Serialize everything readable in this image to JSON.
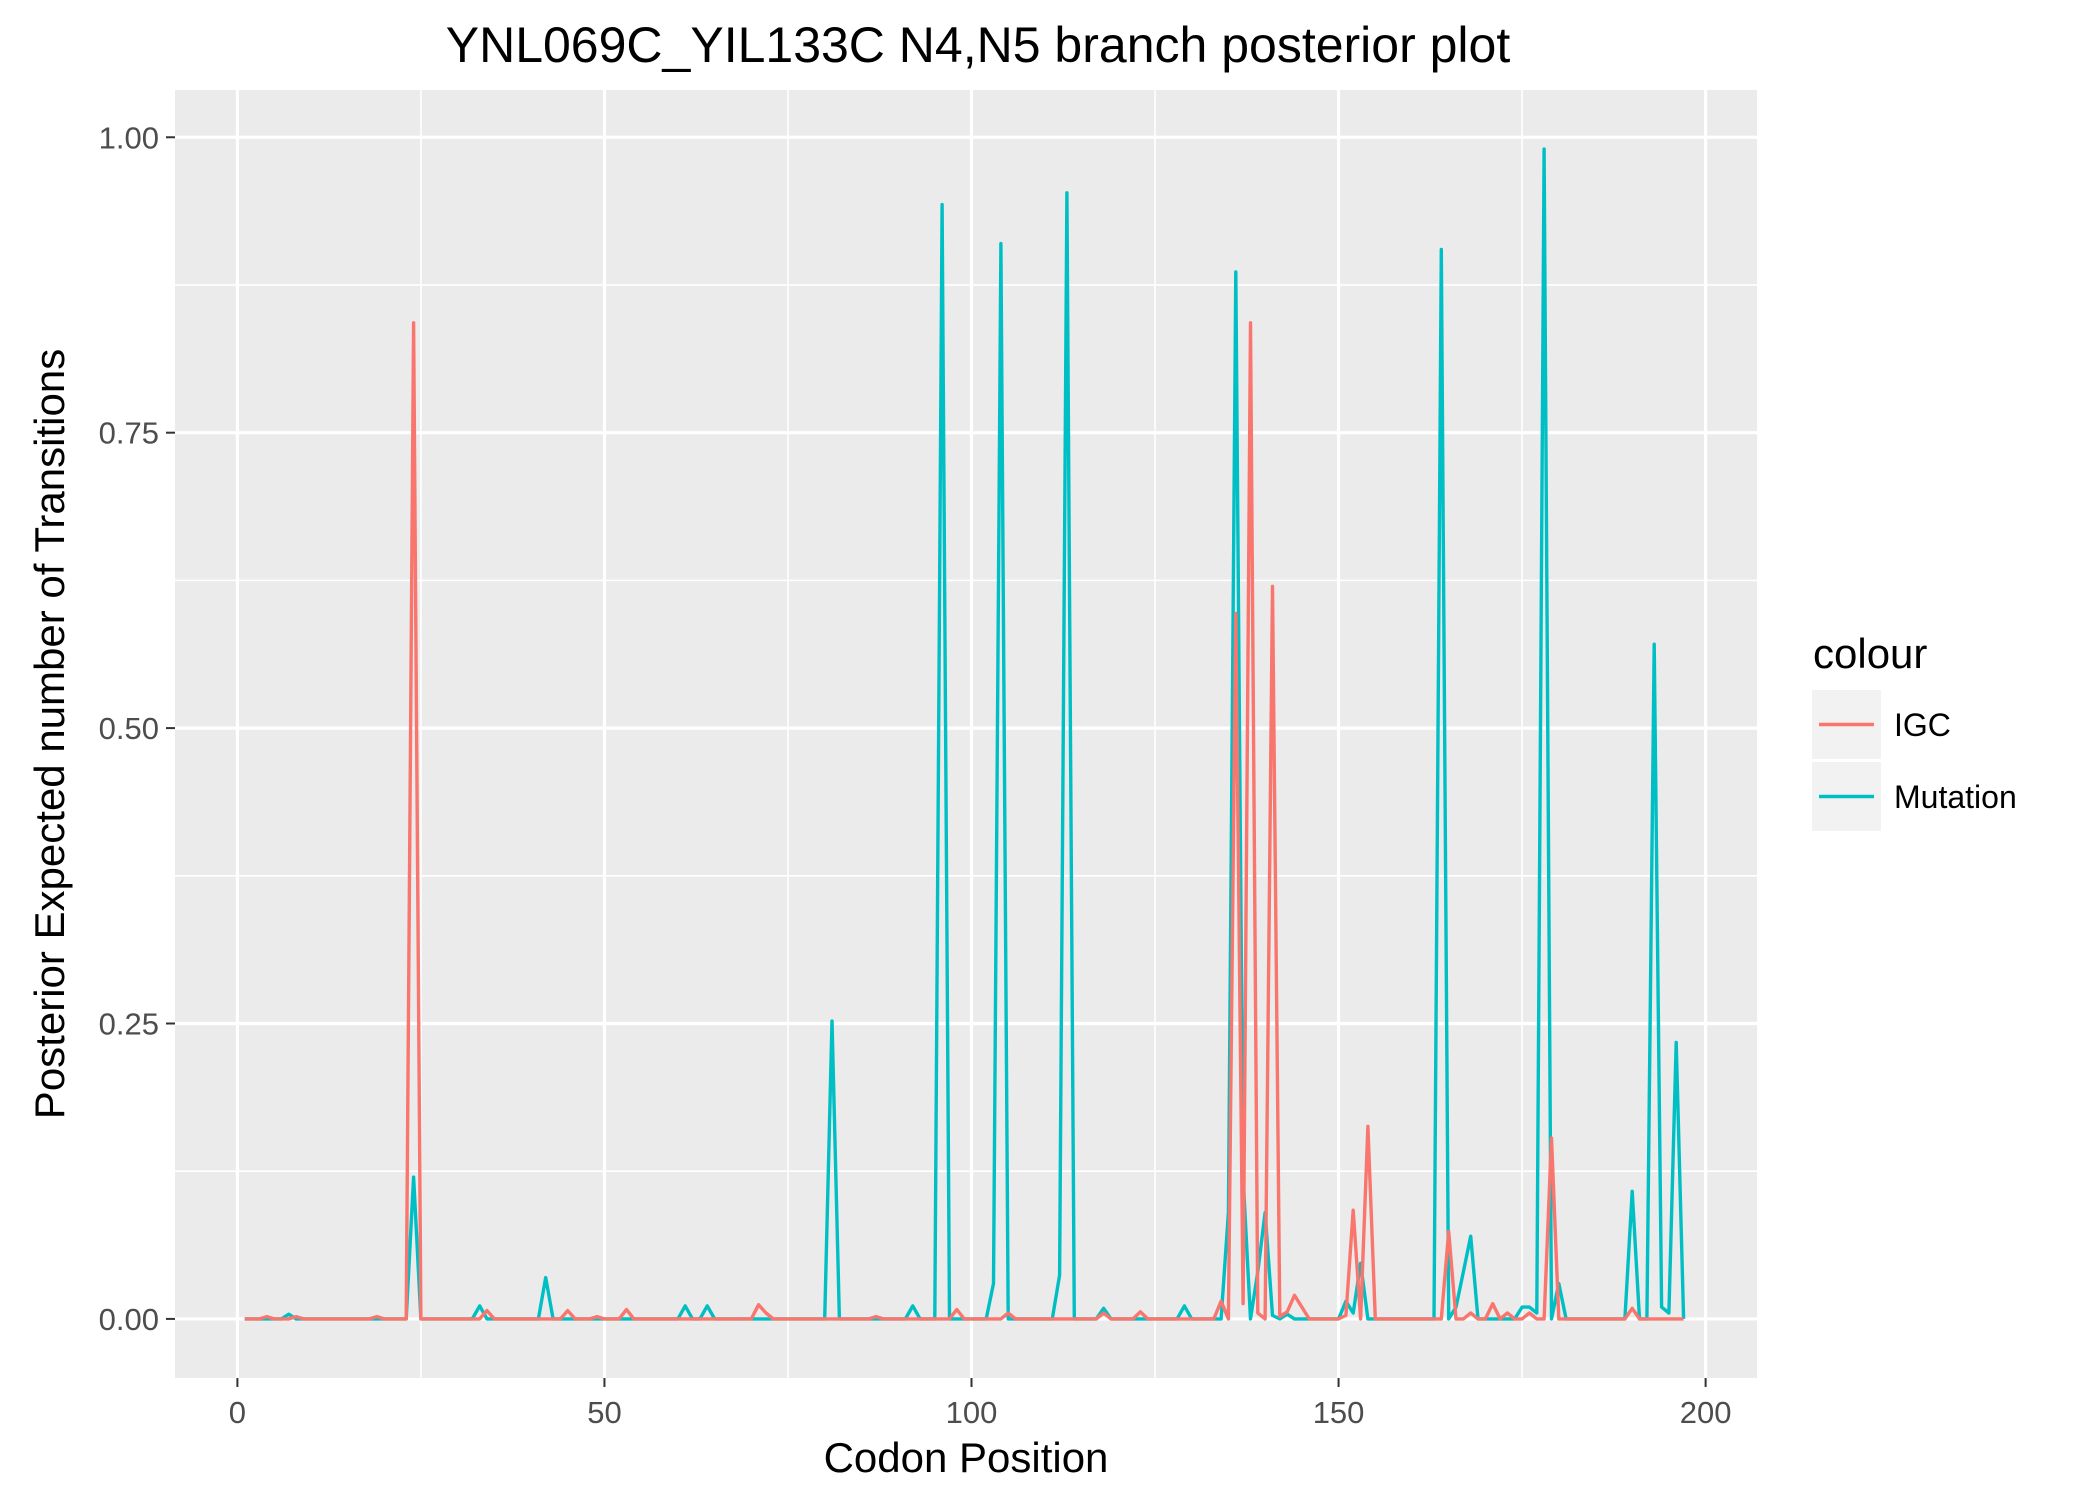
{
  "chart_data": {
    "type": "line",
    "title": "YNL069C_YIL133C N4,N5 branch posterior plot",
    "xlabel": "Codon Position",
    "ylabel": "Posterior Expected number of Transitions",
    "xlim": [
      -8.5,
      207
    ],
    "ylim": [
      -0.05,
      1.04
    ],
    "x_ticks": [
      0,
      50,
      100,
      150,
      200
    ],
    "x_tick_labels": [
      "0",
      "50",
      "100",
      "150",
      "200"
    ],
    "y_ticks": [
      0,
      0.25,
      0.5,
      0.75,
      1.0
    ],
    "y_tick_labels": [
      "0.00",
      "0.25",
      "0.50",
      "0.75",
      "1.00"
    ],
    "grid": true,
    "legend": {
      "title": "colour",
      "position": "right",
      "entries": [
        "IGC",
        "Mutation"
      ]
    },
    "series": [
      {
        "name": "Mutation",
        "color": "#00BFC4",
        "x": [
          1,
          2,
          3,
          4,
          5,
          6,
          7,
          8,
          9,
          10,
          11,
          12,
          13,
          14,
          15,
          16,
          17,
          18,
          19,
          20,
          21,
          22,
          23,
          24,
          25,
          26,
          27,
          28,
          29,
          30,
          31,
          32,
          33,
          34,
          35,
          36,
          37,
          38,
          39,
          40,
          41,
          42,
          43,
          44,
          45,
          46,
          47,
          48,
          49,
          50,
          51,
          52,
          53,
          54,
          55,
          56,
          57,
          58,
          59,
          60,
          61,
          62,
          63,
          64,
          65,
          66,
          67,
          68,
          69,
          70,
          71,
          72,
          73,
          74,
          75,
          76,
          77,
          78,
          79,
          80,
          81,
          82,
          83,
          84,
          85,
          86,
          87,
          88,
          89,
          90,
          91,
          92,
          93,
          94,
          95,
          96,
          97,
          98,
          99,
          100,
          101,
          102,
          103,
          104,
          105,
          106,
          107,
          108,
          109,
          110,
          111,
          112,
          113,
          114,
          115,
          116,
          117,
          118,
          119,
          120,
          121,
          122,
          123,
          124,
          125,
          126,
          127,
          128,
          129,
          130,
          131,
          132,
          133,
          134,
          135,
          136,
          137,
          138,
          139,
          140,
          141,
          142,
          143,
          144,
          145,
          146,
          147,
          148,
          149,
          150,
          151,
          152,
          153,
          154,
          155,
          156,
          157,
          158,
          159,
          160,
          161,
          162,
          163,
          164,
          165,
          166,
          167,
          168,
          169,
          170,
          171,
          172,
          173,
          174,
          175,
          176,
          177,
          178,
          179,
          180,
          181,
          182,
          183,
          184,
          185,
          186,
          187,
          188,
          189,
          190,
          191,
          192,
          193,
          194,
          195,
          196,
          197
        ],
        "y": [
          0.0,
          0.0,
          0.0,
          0.0,
          0.0,
          0.0,
          0.004,
          0.0,
          0.0,
          0.0,
          0.0,
          0.0,
          0.0,
          0.0,
          0.0,
          0.0,
          0.0,
          0.0,
          0.0,
          0.0,
          0.0,
          0.0,
          0.0,
          0.12,
          0.0,
          0.0,
          0.0,
          0.0,
          0.0,
          0.0,
          0.0,
          0.0,
          0.011,
          0.0,
          0.0,
          0.0,
          0.0,
          0.0,
          0.0,
          0.0,
          0.0,
          0.035,
          0.0,
          0.0,
          0.0,
          0.0,
          0.0,
          0.0,
          0.0,
          0.0,
          0.0,
          0.0,
          0.0,
          0.0,
          0.0,
          0.0,
          0.0,
          0.0,
          0.0,
          0.0,
          0.011,
          0.0,
          0.0,
          0.011,
          0.0,
          0.0,
          0.0,
          0.0,
          0.0,
          0.0,
          0.0,
          0.0,
          0.0,
          0.0,
          0.0,
          0.0,
          0.0,
          0.0,
          0.0,
          0.0,
          0.252,
          0.0,
          0.0,
          0.0,
          0.0,
          0.0,
          0.0,
          0.0,
          0.0,
          0.0,
          0.0,
          0.011,
          0.0,
          0.0,
          0.0,
          0.943,
          0.0,
          0.0,
          0.0,
          0.0,
          0.0,
          0.0,
          0.03,
          0.91,
          0.0,
          0.0,
          0.0,
          0.0,
          0.0,
          0.0,
          0.0,
          0.037,
          0.953,
          0.0,
          0.0,
          0.0,
          0.0,
          0.009,
          0.0,
          0.0,
          0.0,
          0.0,
          0.0,
          0.0,
          0.0,
          0.0,
          0.0,
          0.0,
          0.011,
          0.0,
          0.0,
          0.0,
          0.0,
          0.0,
          0.09,
          0.886,
          0.12,
          0.0,
          0.04,
          0.09,
          0.003,
          0.0,
          0.004,
          0.0,
          0.0,
          0.0,
          0.0,
          0.0,
          0.0,
          0.0,
          0.015,
          0.005,
          0.047,
          0.0,
          0.0,
          0.0,
          0.0,
          0.0,
          0.0,
          0.0,
          0.0,
          0.0,
          0.0,
          0.905,
          0.0,
          0.01,
          0.04,
          0.07,
          0.0,
          0.0,
          0.0,
          0.0,
          0.0,
          0.0,
          0.01,
          0.01,
          0.005,
          0.99,
          0.0,
          0.03,
          0.0,
          0.0,
          0.0,
          0.0,
          0.0,
          0.0,
          0.0,
          0.0,
          0.0,
          0.108,
          0.0,
          0.0,
          0.571,
          0.01,
          0.005,
          0.234,
          0.0
        ]
      },
      {
        "name": "IGC",
        "color": "#F8766D",
        "x": [
          1,
          2,
          3,
          4,
          5,
          6,
          7,
          8,
          9,
          10,
          11,
          12,
          13,
          14,
          15,
          16,
          17,
          18,
          19,
          20,
          21,
          22,
          23,
          24,
          25,
          26,
          27,
          28,
          29,
          30,
          31,
          32,
          33,
          34,
          35,
          36,
          37,
          38,
          39,
          40,
          41,
          42,
          43,
          44,
          45,
          46,
          47,
          48,
          49,
          50,
          51,
          52,
          53,
          54,
          55,
          56,
          57,
          58,
          59,
          60,
          61,
          62,
          63,
          64,
          65,
          66,
          67,
          68,
          69,
          70,
          71,
          72,
          73,
          74,
          75,
          76,
          77,
          78,
          79,
          80,
          81,
          82,
          83,
          84,
          85,
          86,
          87,
          88,
          89,
          90,
          91,
          92,
          93,
          94,
          95,
          96,
          97,
          98,
          99,
          100,
          101,
          102,
          103,
          104,
          105,
          106,
          107,
          108,
          109,
          110,
          111,
          112,
          113,
          114,
          115,
          116,
          117,
          118,
          119,
          120,
          121,
          122,
          123,
          124,
          125,
          126,
          127,
          128,
          129,
          130,
          131,
          132,
          133,
          134,
          135,
          136,
          137,
          138,
          139,
          140,
          141,
          142,
          143,
          144,
          145,
          146,
          147,
          148,
          149,
          150,
          151,
          152,
          153,
          154,
          155,
          156,
          157,
          158,
          159,
          160,
          161,
          162,
          163,
          164,
          165,
          166,
          167,
          168,
          169,
          170,
          171,
          172,
          173,
          174,
          175,
          176,
          177,
          178,
          179,
          180,
          181,
          182,
          183,
          184,
          185,
          186,
          187,
          188,
          189,
          190,
          191,
          192,
          193,
          194,
          195,
          196,
          197
        ],
        "y": [
          0.0,
          0.0,
          0.0,
          0.002,
          0.0,
          0.0,
          0.0,
          0.002,
          0.0,
          0.0,
          0.0,
          0.0,
          0.0,
          0.0,
          0.0,
          0.0,
          0.0,
          0.0,
          0.002,
          0.0,
          0.0,
          0.0,
          0.0,
          0.843,
          0.0,
          0.0,
          0.0,
          0.0,
          0.0,
          0.0,
          0.0,
          0.0,
          0.0,
          0.007,
          0.0,
          0.0,
          0.0,
          0.0,
          0.0,
          0.0,
          0.0,
          0.0,
          0.0,
          0.0,
          0.007,
          0.0,
          0.0,
          0.0,
          0.002,
          0.0,
          0.0,
          0.0,
          0.008,
          0.0,
          0.0,
          0.0,
          0.0,
          0.0,
          0.0,
          0.0,
          0.0,
          0.0,
          0.0,
          0.0,
          0.0,
          0.0,
          0.0,
          0.0,
          0.0,
          0.0,
          0.012,
          0.005,
          0.0,
          0.0,
          0.0,
          0.0,
          0.0,
          0.0,
          0.0,
          0.0,
          0.0,
          0.0,
          0.0,
          0.0,
          0.0,
          0.0,
          0.002,
          0.0,
          0.0,
          0.0,
          0.0,
          0.0,
          0.0,
          0.0,
          0.0,
          0.0,
          0.0,
          0.008,
          0.0,
          0.0,
          0.0,
          0.0,
          0.0,
          0.0,
          0.005,
          0.0,
          0.0,
          0.0,
          0.0,
          0.0,
          0.0,
          0.0,
          0.0,
          0.0,
          0.0,
          0.0,
          0.0,
          0.005,
          0.0,
          0.0,
          0.0,
          0.0,
          0.006,
          0.0,
          0.0,
          0.0,
          0.0,
          0.0,
          0.0,
          0.0,
          0.0,
          0.0,
          0.0,
          0.015,
          0.0,
          0.597,
          0.013,
          0.843,
          0.005,
          0.0,
          0.62,
          0.002,
          0.006,
          0.02,
          0.01,
          0.0,
          0.0,
          0.0,
          0.0,
          0.0,
          0.003,
          0.092,
          0.0,
          0.163,
          0.0,
          0.0,
          0.0,
          0.0,
          0.0,
          0.0,
          0.0,
          0.0,
          0.0,
          0.0,
          0.074,
          0.0,
          0.0,
          0.005,
          0.0,
          0.0,
          0.013,
          0.0,
          0.005,
          0.0,
          0.0,
          0.005,
          0.0,
          0.0,
          0.153,
          0.0,
          0.0,
          0.0,
          0.0,
          0.0,
          0.0,
          0.0,
          0.0,
          0.0,
          0.0,
          0.009,
          0.0,
          0.0,
          0.0,
          0.0,
          0.0,
          0.0,
          0.0
        ]
      }
    ]
  }
}
